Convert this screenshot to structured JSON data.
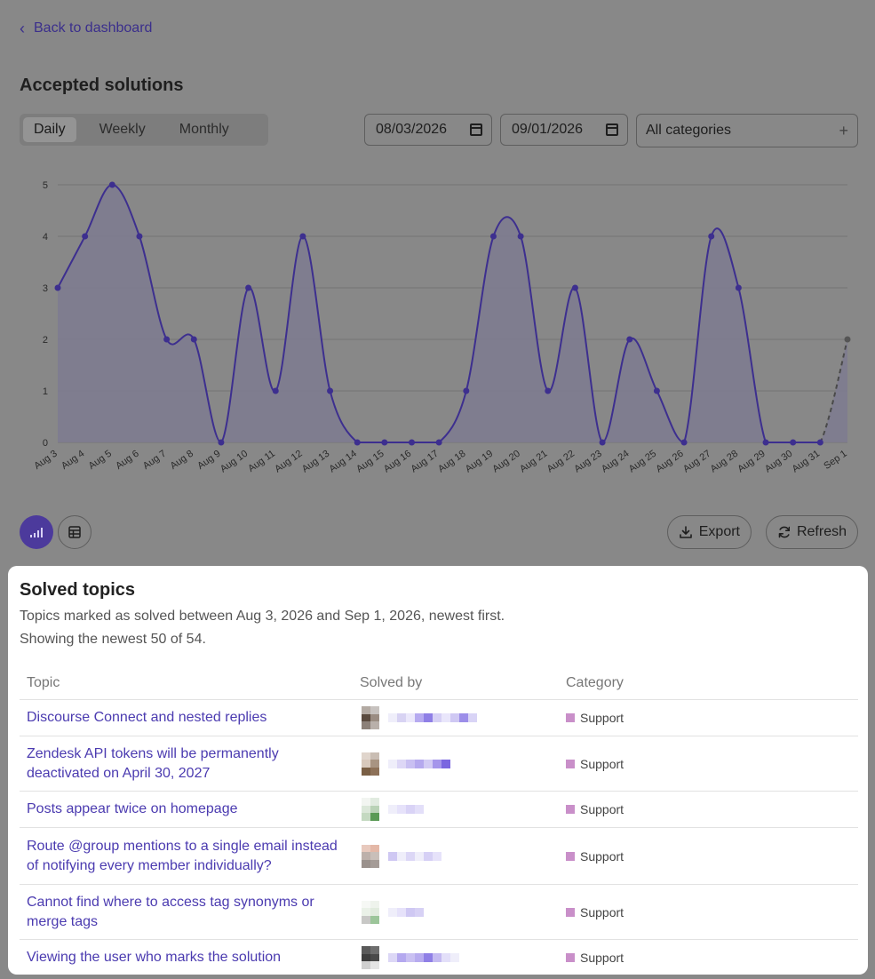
{
  "nav": {
    "back_label": "Back to dashboard"
  },
  "page": {
    "title": "Accepted solutions"
  },
  "filters": {
    "periods": [
      "Daily",
      "Weekly",
      "Monthly"
    ],
    "active_period": "Daily",
    "start_date": "08/03/2026",
    "end_date": "09/01/2026",
    "category": "All categories"
  },
  "chart_data": {
    "type": "area",
    "x": [
      "Aug 3",
      "Aug 4",
      "Aug 5",
      "Aug 6",
      "Aug 7",
      "Aug 8",
      "Aug 9",
      "Aug 10",
      "Aug 11",
      "Aug 12",
      "Aug 13",
      "Aug 14",
      "Aug 15",
      "Aug 16",
      "Aug 17",
      "Aug 18",
      "Aug 19",
      "Aug 20",
      "Aug 21",
      "Aug 22",
      "Aug 23",
      "Aug 24",
      "Aug 25",
      "Aug 26",
      "Aug 27",
      "Aug 28",
      "Aug 29",
      "Aug 30",
      "Aug 31",
      "Sep 1"
    ],
    "series": [
      {
        "values": [
          3,
          4,
          5,
          4,
          2,
          2,
          0,
          3,
          1,
          4,
          1,
          0,
          0,
          0,
          0,
          1,
          4,
          4,
          1,
          3,
          0,
          2,
          1,
          0,
          4,
          3,
          0,
          0,
          0,
          2
        ]
      }
    ],
    "ylim": [
      0,
      5
    ],
    "yticks": [
      0,
      1,
      2,
      3,
      4,
      5
    ],
    "last_segment_dashed": true,
    "grid": true,
    "colors": {
      "line": "#3d2f8f",
      "fill": "#7e7b90",
      "dashed": "#4a4a4a"
    }
  },
  "actions": {
    "export_label": "Export",
    "refresh_label": "Refresh"
  },
  "icons": {
    "chart_view": "bar-chart-icon",
    "table_view": "table-icon",
    "export": "download-icon",
    "refresh": "refresh-icon"
  },
  "solved": {
    "title": "Solved topics",
    "subtitle": "Topics marked as solved between Aug 3, 2026 and Sep 1, 2026, newest first.",
    "count_text": "Showing the newest 50 of 54.",
    "columns": [
      "Topic",
      "Solved by",
      "Category"
    ],
    "rows": [
      {
        "topic": "Discourse Connect and nested replies",
        "category": "Support"
      },
      {
        "topic": "Zendesk API tokens will be permanently deactivated on April 30, 2027",
        "category": "Support"
      },
      {
        "topic": "Posts appear twice on homepage",
        "category": "Support"
      },
      {
        "topic": "Route @group mentions to a single email instead of notifying every member individually?",
        "category": "Support"
      },
      {
        "topic": "Cannot find where to access tag synonyms or merge tags",
        "category": "Support"
      },
      {
        "topic": "Viewing the user who marks the solution",
        "category": "Support"
      }
    ],
    "category_color": "#c98fc9"
  }
}
